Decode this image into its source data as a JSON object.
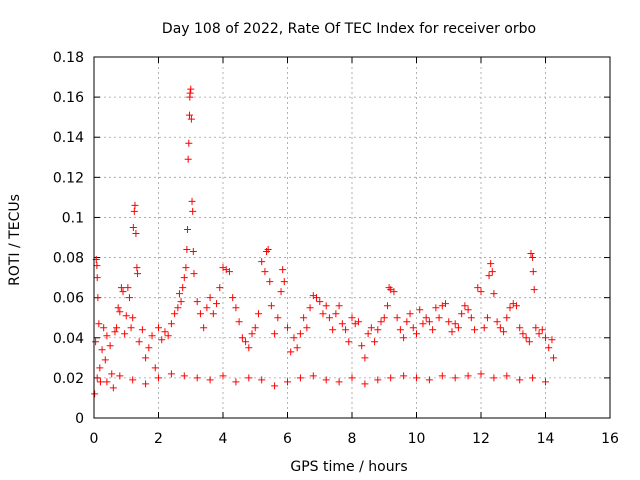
{
  "chart_data": {
    "type": "scatter",
    "title": "Day 108 of 2022, Rate Of TEC Index for receiver orbo",
    "xlabel": "GPS time / hours",
    "ylabel": "ROTI / TECUs",
    "xlim": [
      0,
      16
    ],
    "ylim": [
      0,
      0.18
    ],
    "x_ticks": [
      "0",
      "2",
      "4",
      "6",
      "8",
      "10",
      "12",
      "14",
      "16"
    ],
    "y_ticks": [
      "0",
      "0.02",
      "0.04",
      "0.06",
      "0.08",
      "0.1",
      "0.12",
      "0.14",
      "0.16",
      "0.18"
    ],
    "grid": true,
    "marker": "+",
    "color": "#ff0000",
    "series": [
      {
        "points": [
          [
            0.02,
            0.012
          ],
          [
            0.05,
            0.038
          ],
          [
            0.07,
            0.079
          ],
          [
            0.09,
            0.076
          ],
          [
            0.1,
            0.07
          ],
          [
            0.12,
            0.06
          ],
          [
            0.15,
            0.047
          ],
          [
            0.18,
            0.025
          ],
          [
            0.2,
            0.018
          ],
          [
            0.25,
            0.034
          ],
          [
            0.3,
            0.045
          ],
          [
            0.35,
            0.029
          ],
          [
            0.4,
            0.041
          ],
          [
            0.5,
            0.036
          ],
          [
            0.55,
            0.022
          ],
          [
            0.6,
            0.015
          ],
          [
            0.65,
            0.043
          ],
          [
            0.7,
            0.045
          ],
          [
            0.75,
            0.055
          ],
          [
            0.8,
            0.053
          ],
          [
            0.85,
            0.065
          ],
          [
            0.9,
            0.063
          ],
          [
            0.95,
            0.042
          ],
          [
            1.0,
            0.051
          ],
          [
            1.05,
            0.065
          ],
          [
            1.1,
            0.06
          ],
          [
            1.15,
            0.045
          ],
          [
            1.2,
            0.05
          ],
          [
            1.22,
            0.095
          ],
          [
            1.25,
            0.103
          ],
          [
            1.27,
            0.106
          ],
          [
            1.3,
            0.092
          ],
          [
            1.33,
            0.075
          ],
          [
            1.35,
            0.072
          ],
          [
            1.4,
            0.038
          ],
          [
            1.5,
            0.044
          ],
          [
            1.6,
            0.03
          ],
          [
            1.7,
            0.035
          ],
          [
            1.8,
            0.041
          ],
          [
            1.9,
            0.025
          ],
          [
            2.0,
            0.045
          ],
          [
            2.1,
            0.039
          ],
          [
            2.2,
            0.043
          ],
          [
            2.3,
            0.041
          ],
          [
            2.4,
            0.047
          ],
          [
            2.5,
            0.052
          ],
          [
            2.6,
            0.055
          ],
          [
            2.65,
            0.062
          ],
          [
            2.7,
            0.058
          ],
          [
            2.75,
            0.065
          ],
          [
            2.8,
            0.07
          ],
          [
            2.85,
            0.075
          ],
          [
            2.88,
            0.084
          ],
          [
            2.9,
            0.094
          ],
          [
            2.92,
            0.129
          ],
          [
            2.94,
            0.137
          ],
          [
            2.96,
            0.151
          ],
          [
            2.97,
            0.16
          ],
          [
            2.98,
            0.162
          ],
          [
            3.0,
            0.164
          ],
          [
            3.02,
            0.149
          ],
          [
            3.04,
            0.108
          ],
          [
            3.06,
            0.103
          ],
          [
            3.08,
            0.083
          ],
          [
            3.1,
            0.072
          ],
          [
            3.2,
            0.058
          ],
          [
            3.3,
            0.052
          ],
          [
            3.4,
            0.045
          ],
          [
            3.5,
            0.055
          ],
          [
            3.6,
            0.06
          ],
          [
            3.7,
            0.052
          ],
          [
            3.8,
            0.057
          ],
          [
            3.9,
            0.065
          ],
          [
            4.0,
            0.075
          ],
          [
            4.1,
            0.074
          ],
          [
            4.2,
            0.073
          ],
          [
            4.3,
            0.06
          ],
          [
            4.4,
            0.055
          ],
          [
            4.5,
            0.048
          ],
          [
            4.6,
            0.04
          ],
          [
            4.7,
            0.038
          ],
          [
            4.8,
            0.035
          ],
          [
            4.9,
            0.042
          ],
          [
            5.0,
            0.045
          ],
          [
            5.1,
            0.052
          ],
          [
            5.2,
            0.078
          ],
          [
            5.3,
            0.073
          ],
          [
            5.35,
            0.083
          ],
          [
            5.4,
            0.084
          ],
          [
            5.45,
            0.068
          ],
          [
            5.5,
            0.056
          ],
          [
            5.6,
            0.042
          ],
          [
            5.7,
            0.05
          ],
          [
            5.8,
            0.063
          ],
          [
            5.85,
            0.074
          ],
          [
            5.9,
            0.068
          ],
          [
            6.0,
            0.045
          ],
          [
            6.1,
            0.033
          ],
          [
            6.2,
            0.04
          ],
          [
            6.3,
            0.035
          ],
          [
            6.4,
            0.042
          ],
          [
            6.5,
            0.05
          ],
          [
            6.6,
            0.045
          ],
          [
            6.7,
            0.055
          ],
          [
            6.8,
            0.061
          ],
          [
            6.9,
            0.06
          ],
          [
            7.0,
            0.058
          ],
          [
            7.1,
            0.052
          ],
          [
            7.2,
            0.056
          ],
          [
            7.3,
            0.05
          ],
          [
            7.4,
            0.044
          ],
          [
            7.5,
            0.052
          ],
          [
            7.6,
            0.056
          ],
          [
            7.7,
            0.047
          ],
          [
            7.8,
            0.044
          ],
          [
            7.9,
            0.038
          ],
          [
            8.0,
            0.05
          ],
          [
            8.1,
            0.047
          ],
          [
            8.2,
            0.048
          ],
          [
            8.3,
            0.036
          ],
          [
            8.4,
            0.03
          ],
          [
            8.5,
            0.042
          ],
          [
            8.6,
            0.045
          ],
          [
            8.7,
            0.038
          ],
          [
            8.8,
            0.044
          ],
          [
            8.9,
            0.048
          ],
          [
            9.0,
            0.05
          ],
          [
            9.1,
            0.056
          ],
          [
            9.15,
            0.065
          ],
          [
            9.2,
            0.064
          ],
          [
            9.3,
            0.063
          ],
          [
            9.4,
            0.05
          ],
          [
            9.5,
            0.044
          ],
          [
            9.6,
            0.04
          ],
          [
            9.7,
            0.048
          ],
          [
            9.8,
            0.052
          ],
          [
            9.9,
            0.045
          ],
          [
            10.0,
            0.042
          ],
          [
            10.1,
            0.054
          ],
          [
            10.2,
            0.047
          ],
          [
            10.3,
            0.05
          ],
          [
            10.4,
            0.048
          ],
          [
            10.5,
            0.044
          ],
          [
            10.6,
            0.055
          ],
          [
            10.7,
            0.05
          ],
          [
            10.8,
            0.056
          ],
          [
            10.9,
            0.057
          ],
          [
            11.0,
            0.048
          ],
          [
            11.1,
            0.043
          ],
          [
            11.2,
            0.047
          ],
          [
            11.3,
            0.045
          ],
          [
            11.4,
            0.052
          ],
          [
            11.5,
            0.056
          ],
          [
            11.6,
            0.054
          ],
          [
            11.7,
            0.05
          ],
          [
            11.8,
            0.044
          ],
          [
            11.9,
            0.065
          ],
          [
            12.0,
            0.063
          ],
          [
            12.1,
            0.045
          ],
          [
            12.2,
            0.05
          ],
          [
            12.25,
            0.071
          ],
          [
            12.3,
            0.077
          ],
          [
            12.35,
            0.073
          ],
          [
            12.4,
            0.062
          ],
          [
            12.5,
            0.048
          ],
          [
            12.6,
            0.045
          ],
          [
            12.7,
            0.043
          ],
          [
            12.8,
            0.05
          ],
          [
            12.9,
            0.055
          ],
          [
            13.0,
            0.057
          ],
          [
            13.1,
            0.056
          ],
          [
            13.2,
            0.045
          ],
          [
            13.3,
            0.042
          ],
          [
            13.4,
            0.04
          ],
          [
            13.5,
            0.038
          ],
          [
            13.55,
            0.082
          ],
          [
            13.6,
            0.08
          ],
          [
            13.62,
            0.073
          ],
          [
            13.65,
            0.064
          ],
          [
            13.7,
            0.045
          ],
          [
            13.8,
            0.042
          ],
          [
            13.9,
            0.044
          ],
          [
            14.0,
            0.04
          ],
          [
            14.1,
            0.035
          ],
          [
            14.2,
            0.039
          ],
          [
            14.25,
            0.03
          ],
          [
            0.1,
            0.02
          ],
          [
            0.4,
            0.018
          ],
          [
            0.8,
            0.021
          ],
          [
            1.2,
            0.019
          ],
          [
            1.6,
            0.017
          ],
          [
            2.0,
            0.02
          ],
          [
            2.4,
            0.022
          ],
          [
            2.8,
            0.021
          ],
          [
            3.2,
            0.02
          ],
          [
            3.6,
            0.019
          ],
          [
            4.0,
            0.021
          ],
          [
            4.4,
            0.018
          ],
          [
            4.8,
            0.02
          ],
          [
            5.2,
            0.019
          ],
          [
            5.6,
            0.016
          ],
          [
            6.0,
            0.018
          ],
          [
            6.4,
            0.02
          ],
          [
            6.8,
            0.021
          ],
          [
            7.2,
            0.019
          ],
          [
            7.6,
            0.018
          ],
          [
            8.0,
            0.02
          ],
          [
            8.4,
            0.017
          ],
          [
            8.8,
            0.019
          ],
          [
            9.2,
            0.02
          ],
          [
            9.6,
            0.021
          ],
          [
            10.0,
            0.02
          ],
          [
            10.4,
            0.019
          ],
          [
            10.8,
            0.021
          ],
          [
            11.2,
            0.02
          ],
          [
            11.6,
            0.021
          ],
          [
            12.0,
            0.022
          ],
          [
            12.4,
            0.02
          ],
          [
            12.8,
            0.021
          ],
          [
            13.2,
            0.019
          ],
          [
            13.6,
            0.02
          ],
          [
            14.0,
            0.018
          ]
        ]
      }
    ]
  }
}
